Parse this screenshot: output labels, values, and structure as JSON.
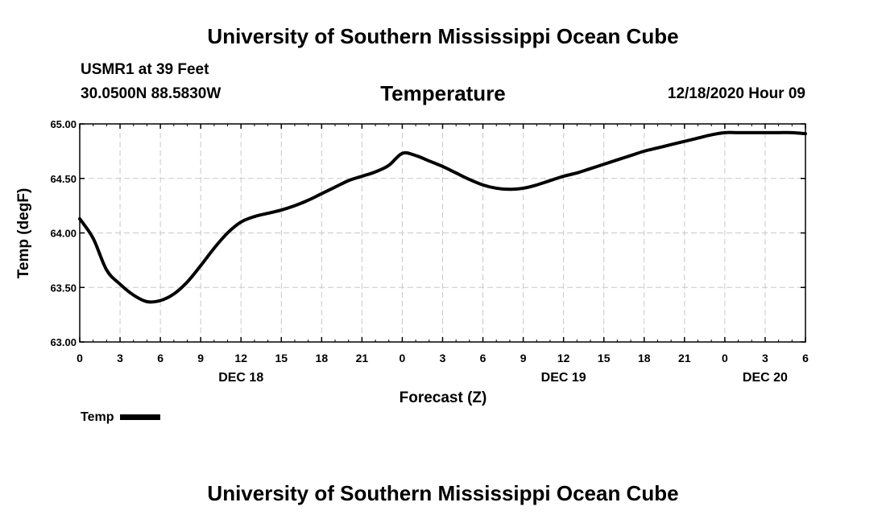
{
  "header": {
    "title": "University of Southern Mississippi Ocean Cube",
    "station": "USMR1 at 39 Feet",
    "coords": "30.0500N 88.5830W",
    "parameter": "Temperature",
    "issued": "12/18/2020 Hour 09"
  },
  "footer": {
    "title": "University of Southern Mississippi Ocean Cube"
  },
  "legend": {
    "label": "Temp"
  },
  "chart_data": {
    "type": "line",
    "title": "Temperature",
    "xlabel": "Forecast (Z)",
    "ylabel": "Temp (degF)",
    "ylim": [
      63.0,
      65.0
    ],
    "xlim": [
      0,
      54
    ],
    "y_ticks": [
      "63.00",
      "63.50",
      "64.00",
      "64.50",
      "65.00"
    ],
    "y_tick_values": [
      63.0,
      63.5,
      64.0,
      64.5,
      65.0
    ],
    "x_tick_hours": [
      0,
      3,
      6,
      9,
      12,
      15,
      18,
      21,
      24,
      27,
      30,
      33,
      36,
      39,
      42,
      45,
      48,
      51,
      54
    ],
    "x_tick_labels": [
      "0",
      "3",
      "6",
      "9",
      "12",
      "15",
      "18",
      "21",
      "0",
      "3",
      "6",
      "9",
      "12",
      "15",
      "18",
      "21",
      "0",
      "3",
      "6"
    ],
    "date_labels": [
      {
        "hour": 12,
        "label": "DEC 18"
      },
      {
        "hour": 36,
        "label": "DEC 19"
      },
      {
        "hour": 51,
        "label": "DEC 20"
      }
    ],
    "grid": true,
    "series": [
      {
        "name": "Temp",
        "color": "#000000",
        "x": [
          0,
          1,
          2,
          3,
          4,
          5,
          6,
          7,
          8,
          9,
          10,
          11,
          12,
          13,
          14,
          15,
          16,
          17,
          18,
          19,
          20,
          21,
          22,
          23,
          24,
          25,
          26,
          27,
          28,
          29,
          30,
          31,
          32,
          33,
          34,
          35,
          36,
          37,
          38,
          39,
          40,
          41,
          42,
          43,
          44,
          45,
          46,
          47,
          48,
          49,
          50,
          51,
          52,
          53,
          54
        ],
        "values": [
          64.13,
          63.95,
          63.66,
          63.53,
          63.43,
          63.37,
          63.38,
          63.44,
          63.55,
          63.7,
          63.86,
          64.0,
          64.1,
          64.15,
          64.18,
          64.21,
          64.25,
          64.3,
          64.36,
          64.42,
          64.48,
          64.52,
          64.56,
          64.62,
          64.73,
          64.71,
          64.66,
          64.61,
          64.55,
          64.49,
          64.44,
          64.41,
          64.4,
          64.41,
          64.44,
          64.48,
          64.52,
          64.55,
          64.59,
          64.63,
          64.67,
          64.71,
          64.75,
          64.78,
          64.81,
          64.84,
          64.87,
          64.9,
          64.92,
          64.92,
          64.92,
          64.92,
          64.92,
          64.92,
          64.91
        ]
      }
    ]
  }
}
